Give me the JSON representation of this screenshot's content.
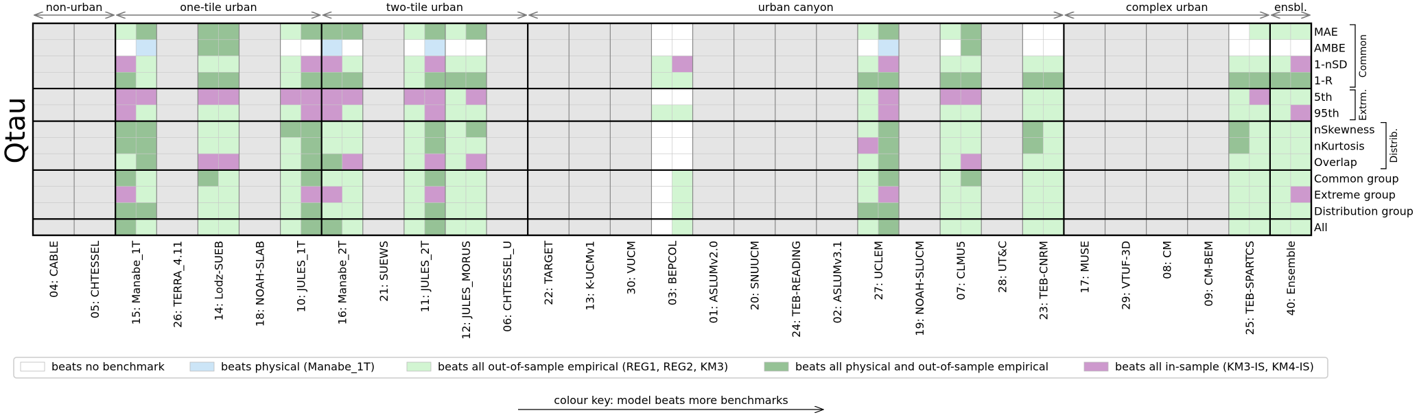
{
  "chart_data": {
    "type": "heatmap",
    "ylabel": "Qtau",
    "groups": [
      {
        "label": "non-urban",
        "start": 0,
        "end": 2
      },
      {
        "label": "one-tile urban",
        "start": 2,
        "end": 7
      },
      {
        "label": "two-tile urban",
        "start": 7,
        "end": 12
      },
      {
        "label": "urban canyon",
        "start": 12,
        "end": 25
      },
      {
        "label": "complex urban",
        "start": 25,
        "end": 30
      },
      {
        "label": "ensbl.",
        "start": 30,
        "end": 31
      }
    ],
    "models": [
      "04: CABLE",
      "05: CHTESSEL",
      "15: Manabe_1T",
      "26: TERRA_4.11",
      "14: Lodz-SUEB",
      "18: NOAH-SLAB",
      "10: JULES_1T",
      "16: Manabe_2T",
      "21: SUEWS",
      "11: JULES_2T",
      "12: JULES_MORUS",
      "06: CHTESSEL_U",
      "22: TARGET",
      "13: K-UCMv1",
      "30: VUCM",
      "03: BEPCOL",
      "01: ASLUMv2.0",
      "20: SNUUCM",
      "24: TEB-READING",
      "02: ASLUMv3.1",
      "27: UCLEM",
      "19: NOAH-SLUCM",
      "07: CLMU5",
      "28: UT&C",
      "23: TEB-CNRM",
      "17: MUSE",
      "29: VTUF-3D",
      "08: CM",
      "09: CM-BEM",
      "25: TEB-SPARTCS",
      "40: Ensemble"
    ],
    "metrics": [
      "MAE",
      "AMBE",
      "1-nSD",
      "1-R",
      "5th",
      "95th",
      "nSkewness",
      "nKurtosis",
      "Overlap",
      "Common group",
      "Extreme group",
      "Distribution group",
      "All"
    ],
    "metric_blocks": [
      {
        "label": "Common",
        "start": 0,
        "end": 4
      },
      {
        "label": "Extrm.",
        "start": 4,
        "end": 6
      },
      {
        "label": "Distrib.",
        "start": 6,
        "end": 9
      }
    ],
    "code_key": {
      "x": "no data",
      "W": "beats no benchmark",
      "B": "beats physical (Manabe_1T)",
      "L": "beats all out-of-sample empirical (REG1, REG2, KM3)",
      "G": "beats all physical and out-of-sample empirical",
      "P": "beats all in-sample (KM3-IS, KM4-IS)"
    },
    "colors": {
      "x": "#e5e5e5",
      "W": "#ffffff",
      "B": "#cce5f7",
      "L": "#d2f5d2",
      "G": "#96c296",
      "P": "#cd99cd"
    },
    "cells": {
      "04: CABLE": [
        "xx",
        "xx",
        "xx",
        "xx",
        "xx",
        "xx",
        "xx",
        "xx",
        "xx",
        "xx",
        "xx",
        "xx",
        "xx"
      ],
      "05: CHTESSEL": [
        "xx",
        "xx",
        "xx",
        "xx",
        "xx",
        "xx",
        "xx",
        "xx",
        "xx",
        "xx",
        "xx",
        "xx",
        "xx"
      ],
      "15: Manabe_1T": [
        "LG",
        "WB",
        "PL",
        "GL",
        "PP",
        "PL",
        "GG",
        "GG",
        "LG",
        "GL",
        "PL",
        "GG",
        "GL"
      ],
      "26: TERRA_4.11": [
        "xx",
        "xx",
        "xx",
        "xx",
        "xx",
        "xx",
        "xx",
        "xx",
        "xx",
        "xx",
        "xx",
        "xx",
        "xx"
      ],
      "14: Lodz-SUEB": [
        "GG",
        "GG",
        "LL",
        "GG",
        "PP",
        "LL",
        "LL",
        "LL",
        "PP",
        "GL",
        "LL",
        "LL",
        "LL"
      ],
      "18: NOAH-SLAB": [
        "xx",
        "xx",
        "xx",
        "xx",
        "xx",
        "xx",
        "xx",
        "xx",
        "xx",
        "xx",
        "xx",
        "xx",
        "xx"
      ],
      "10: JULES_1T": [
        "LG",
        "WW",
        "LP",
        "LG",
        "PP",
        "LP",
        "GG",
        "LG",
        "LG",
        "LG",
        "LP",
        "LG",
        "LG"
      ],
      "16: Manabe_2T": [
        "GG",
        "BW",
        "PL",
        "GG",
        "PP",
        "PL",
        "LL",
        "LL",
        "GP",
        "LL",
        "PL",
        "LL",
        "GL"
      ],
      "21: SUEWS": [
        "xx",
        "xx",
        "xx",
        "xx",
        "xx",
        "xx",
        "xx",
        "xx",
        "xx",
        "xx",
        "xx",
        "xx",
        "xx"
      ],
      "11: JULES_2T": [
        "LG",
        "WB",
        "LP",
        "LG",
        "PP",
        "LP",
        "LG",
        "LG",
        "LP",
        "LG",
        "LP",
        "LG",
        "LG"
      ],
      "12: JULES_MORUS": [
        "LG",
        "WW",
        "LL",
        "GG",
        "LP",
        "LL",
        "LG",
        "LL",
        "LP",
        "LL",
        "LL",
        "LL",
        "LL"
      ],
      "06: CHTESSEL_U": [
        "xx",
        "xx",
        "xx",
        "xx",
        "xx",
        "xx",
        "xx",
        "xx",
        "xx",
        "xx",
        "xx",
        "xx",
        "xx"
      ],
      "22: TARGET": [
        "xx",
        "xx",
        "xx",
        "xx",
        "xx",
        "xx",
        "xx",
        "xx",
        "xx",
        "xx",
        "xx",
        "xx",
        "xx"
      ],
      "13: K-UCMv1": [
        "xx",
        "xx",
        "xx",
        "xx",
        "xx",
        "xx",
        "xx",
        "xx",
        "xx",
        "xx",
        "xx",
        "xx",
        "xx"
      ],
      "30: VUCM": [
        "xx",
        "xx",
        "xx",
        "xx",
        "xx",
        "xx",
        "xx",
        "xx",
        "xx",
        "xx",
        "xx",
        "xx",
        "xx"
      ],
      "03: BEPCOL": [
        "WW",
        "WW",
        "LP",
        "LL",
        "WW",
        "LL",
        "WW",
        "WW",
        "WW",
        "WL",
        "WL",
        "WL",
        "WL"
      ],
      "01: ASLUMv2.0": [
        "xx",
        "xx",
        "xx",
        "xx",
        "xx",
        "xx",
        "xx",
        "xx",
        "xx",
        "xx",
        "xx",
        "xx",
        "xx"
      ],
      "20: SNUUCM": [
        "xx",
        "xx",
        "xx",
        "xx",
        "xx",
        "xx",
        "xx",
        "xx",
        "xx",
        "xx",
        "xx",
        "xx",
        "xx"
      ],
      "24: TEB-READING": [
        "xx",
        "xx",
        "xx",
        "xx",
        "xx",
        "xx",
        "xx",
        "xx",
        "xx",
        "xx",
        "xx",
        "xx",
        "xx"
      ],
      "02: ASLUMv3.1": [
        "xx",
        "xx",
        "xx",
        "xx",
        "xx",
        "xx",
        "xx",
        "xx",
        "xx",
        "xx",
        "xx",
        "xx",
        "xx"
      ],
      "27: UCLEM": [
        "LG",
        "WB",
        "LP",
        "GG",
        "LP",
        "LP",
        "LG",
        "PG",
        "LG",
        "LG",
        "LP",
        "GG",
        "LG"
      ],
      "19: NOAH-SLUCM": [
        "xx",
        "xx",
        "xx",
        "xx",
        "xx",
        "xx",
        "xx",
        "xx",
        "xx",
        "xx",
        "xx",
        "xx",
        "xx"
      ],
      "07: CLMU5": [
        "LG",
        "WG",
        "LL",
        "GG",
        "PP",
        "LL",
        "LL",
        "LL",
        "LP",
        "LG",
        "LL",
        "LL",
        "LL"
      ],
      "28: UT&C": [
        "xx",
        "xx",
        "xx",
        "xx",
        "xx",
        "xx",
        "xx",
        "xx",
        "xx",
        "xx",
        "xx",
        "xx",
        "xx"
      ],
      "23: TEB-CNRM": [
        "WW",
        "WW",
        "LL",
        "GG",
        "LL",
        "LL",
        "GL",
        "GL",
        "LL",
        "LL",
        "LL",
        "LL",
        "LL"
      ],
      "17: MUSE": [
        "xx",
        "xx",
        "xx",
        "xx",
        "xx",
        "xx",
        "xx",
        "xx",
        "xx",
        "xx",
        "xx",
        "xx",
        "xx"
      ],
      "29: VTUF-3D": [
        "xx",
        "xx",
        "xx",
        "xx",
        "xx",
        "xx",
        "xx",
        "xx",
        "xx",
        "xx",
        "xx",
        "xx",
        "xx"
      ],
      "08: CM": [
        "xx",
        "xx",
        "xx",
        "xx",
        "xx",
        "xx",
        "xx",
        "xx",
        "xx",
        "xx",
        "xx",
        "xx",
        "xx"
      ],
      "09: CM-BEM": [
        "xx",
        "xx",
        "xx",
        "xx",
        "xx",
        "xx",
        "xx",
        "xx",
        "xx",
        "xx",
        "xx",
        "xx",
        "xx"
      ],
      "25: TEB-SPARTCS": [
        "WL",
        "WW",
        "LL",
        "GG",
        "LP",
        "LL",
        "GL",
        "GL",
        "LL",
        "LL",
        "LL",
        "LL",
        "LL"
      ],
      "40: Ensemble": [
        "LL",
        "WW",
        "LP",
        "GG",
        "LL",
        "LP",
        "LL",
        "LL",
        "LL",
        "LL",
        "LP",
        "LL",
        "LL"
      ]
    }
  },
  "legend": {
    "items": [
      {
        "code": "W",
        "label": "beats no benchmark"
      },
      {
        "code": "B",
        "label": "beats physical (Manabe_1T)"
      },
      {
        "code": "L",
        "label": "beats all out-of-sample empirical (REG1, REG2, KM3)"
      },
      {
        "code": "G",
        "label": "beats all physical and out-of-sample empirical"
      },
      {
        "code": "P",
        "label": "beats all in-sample (KM3-IS, KM4-IS)"
      }
    ],
    "arrow_text": "colour key: model beats more benchmarks"
  }
}
